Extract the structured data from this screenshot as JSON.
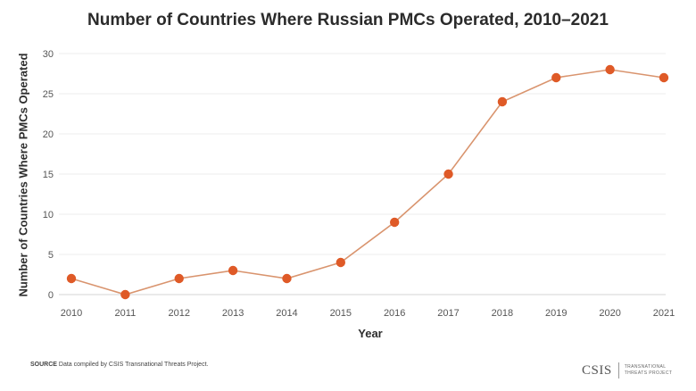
{
  "chart_data": {
    "type": "line",
    "title": "Number of Countries Where Russian PMCs Operated, 2010–2021",
    "xlabel": "Year",
    "ylabel": "Number of Countries Where PMCs Operated",
    "x": [
      "2010",
      "2011",
      "2012",
      "2013",
      "2014",
      "2015",
      "2016",
      "2017",
      "2018",
      "2019",
      "2020",
      "2021"
    ],
    "series": [
      {
        "values": [
          2,
          0,
          2,
          3,
          2,
          4,
          9,
          15,
          24,
          27,
          28,
          27
        ]
      }
    ],
    "ylim": [
      0,
      30
    ],
    "yticks": [
      0,
      5,
      10,
      15,
      20,
      25,
      30
    ],
    "grid": true,
    "line_color": "#d9946e",
    "marker_color": "#df5a27"
  },
  "footer": {
    "source_label": "SOURCE",
    "source_text": "Data compiled by CSIS Transnational Threats Project.",
    "logo_mark": "CSIS",
    "logo_sub_line1": "TRANSNATIONAL",
    "logo_sub_line2": "THREATS PROJECT"
  }
}
